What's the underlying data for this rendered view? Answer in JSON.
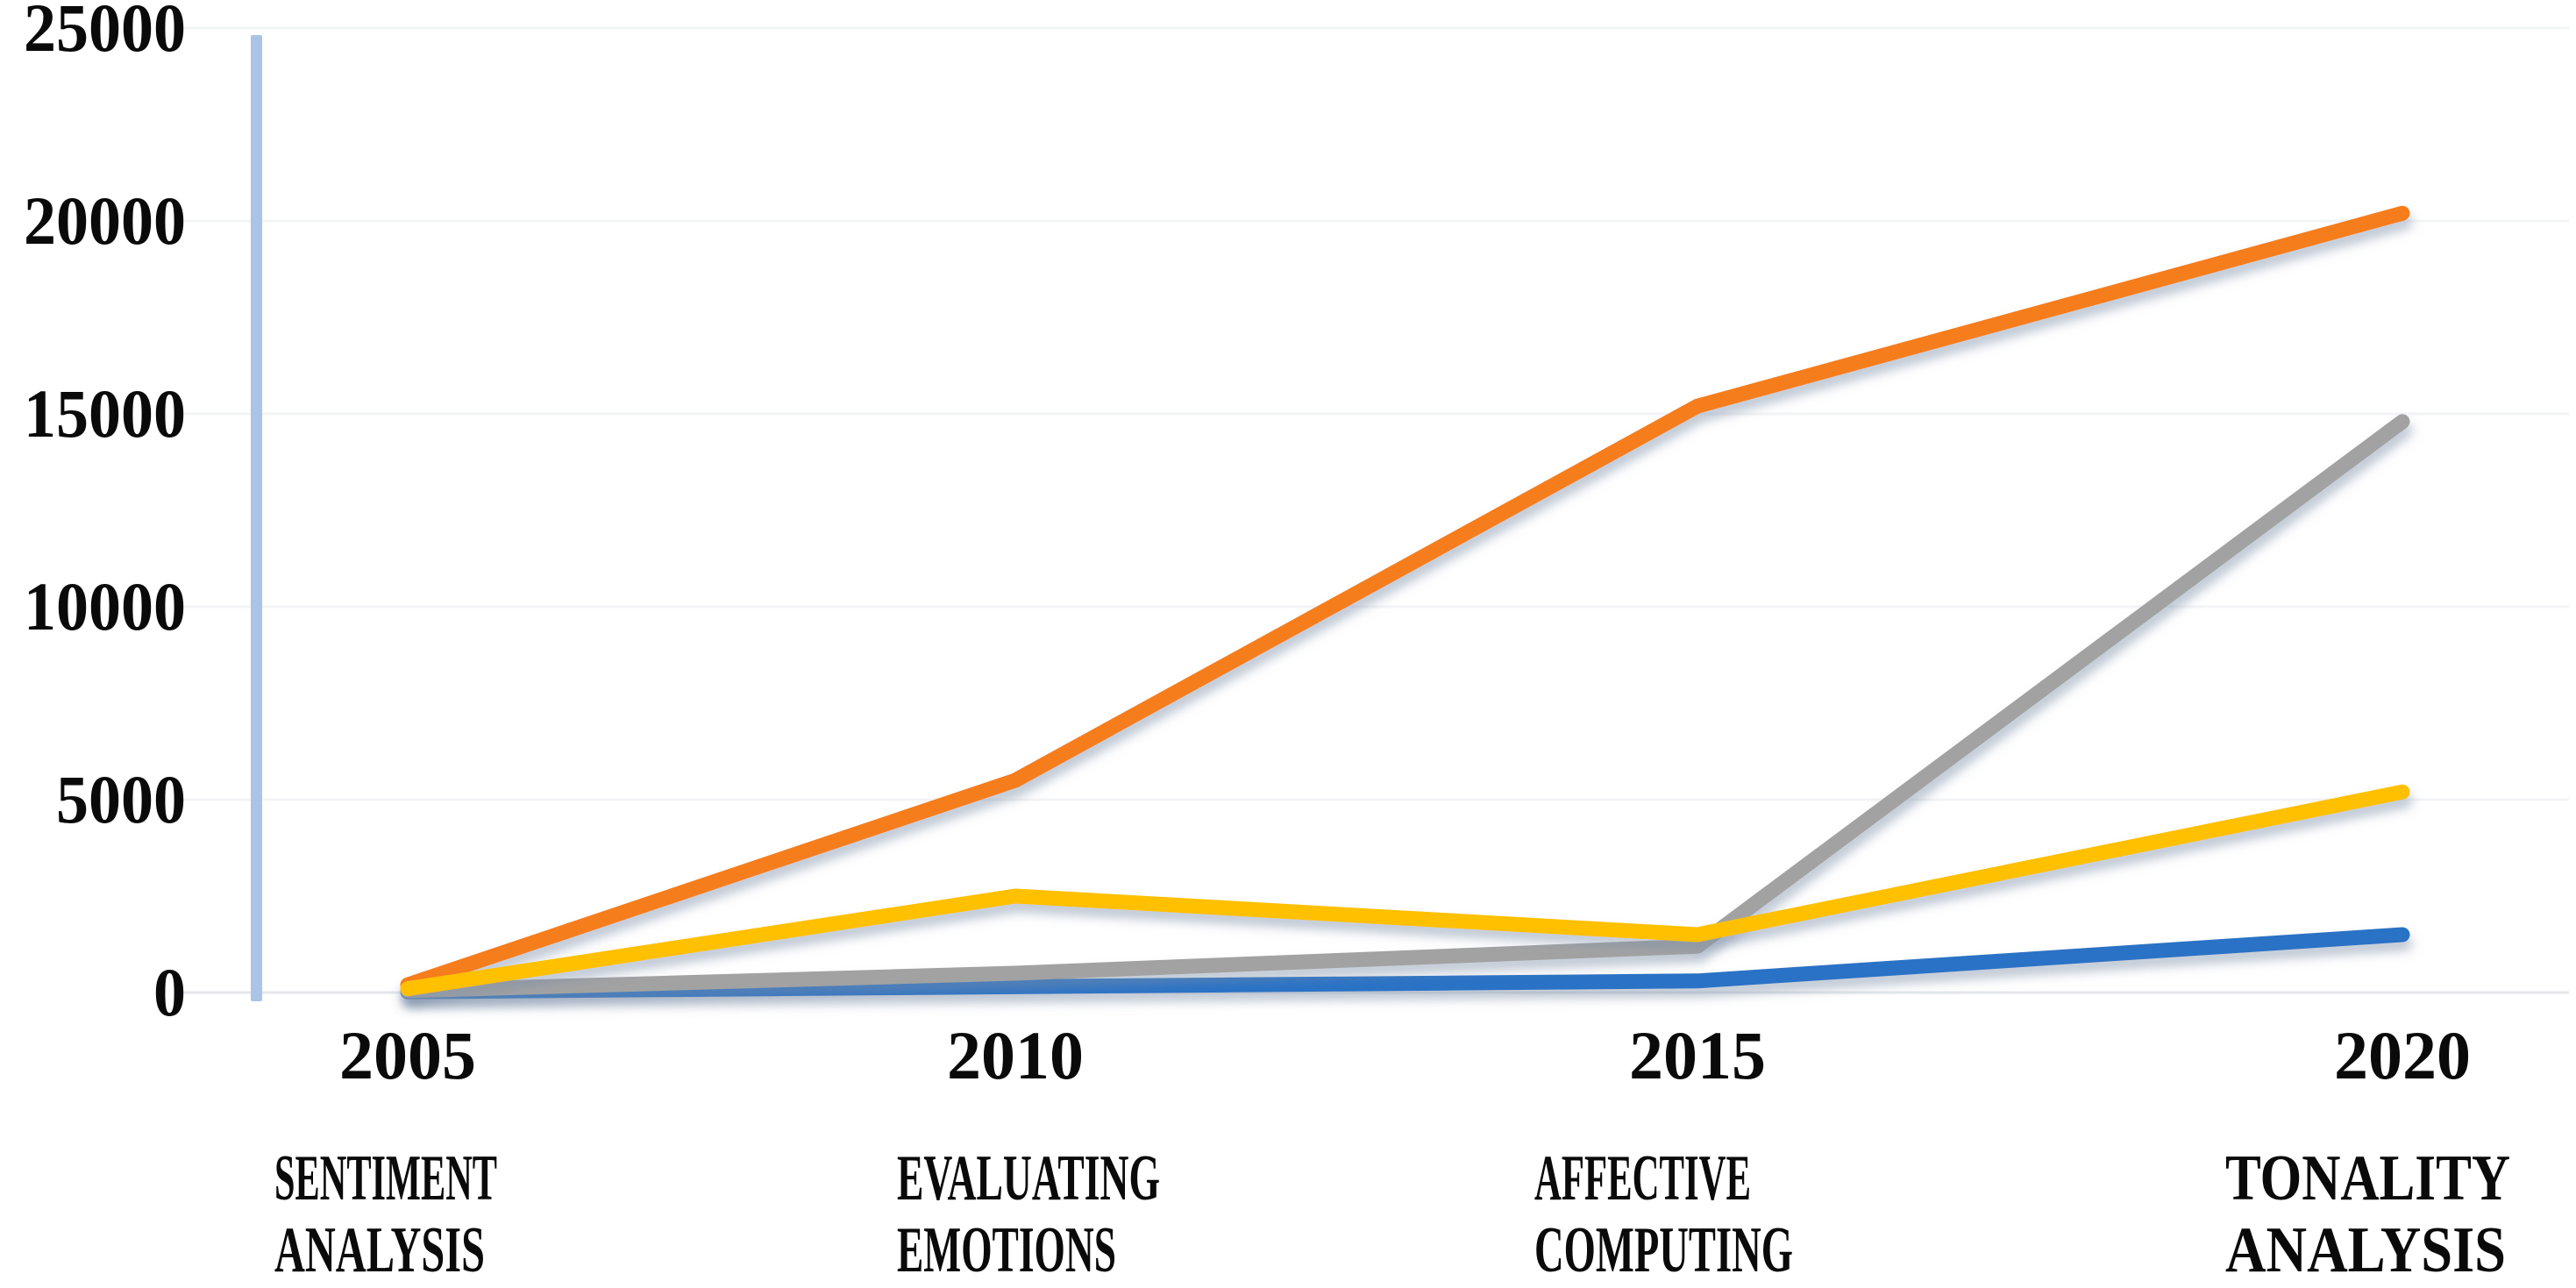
{
  "chart_data": {
    "type": "line",
    "title": "",
    "categories": [
      "2005",
      "2010",
      "2015",
      "2020"
    ],
    "series": [
      {
        "name": "SENTIMENT ANALYSIS",
        "color": "#2B72C5",
        "values": [
          20,
          150,
          300,
          1500
        ]
      },
      {
        "name": "EVALUATING EMOTIONS",
        "color": "#F67D1C",
        "values": [
          200,
          5500,
          15200,
          20200
        ]
      },
      {
        "name": "AFFECTIVE COMPUTING",
        "color": "#A2A2A2",
        "values": [
          50,
          500,
          1200,
          14800
        ]
      },
      {
        "name": "TONALITY ANALYSIS",
        "color": "#FFC000",
        "values": [
          100,
          2500,
          1500,
          5200
        ]
      }
    ],
    "y_ticks": [
      0,
      5000,
      10000,
      15000,
      20000,
      25000
    ],
    "y_tick_labels": [
      "0",
      "5000",
      "10000",
      "15000",
      "20000",
      "25000"
    ],
    "ylim": [
      0,
      25000
    ],
    "grid": true,
    "legend_position": "bottom",
    "legend_entries": [
      {
        "lines": [
          "SENTIMENT",
          "ANALYSIS"
        ],
        "color": "#2B72C5"
      },
      {
        "lines": [
          "EVALUATING",
          "EMOTIONS"
        ],
        "color": "#F67D1C"
      },
      {
        "lines": [
          "AFFECTIVE",
          "COMPUTING"
        ],
        "color": "#A2A2A2"
      },
      {
        "lines": [
          "TONALITY",
          "ANALYSIS"
        ],
        "color": "#FFC000"
      }
    ],
    "colors": {
      "y_axis_line": "#A9C4E6",
      "gridline": "#F3F4F6",
      "baseline": "#E3E7EB",
      "text": "#0A0A0A",
      "background": "#FFFFFF"
    }
  }
}
